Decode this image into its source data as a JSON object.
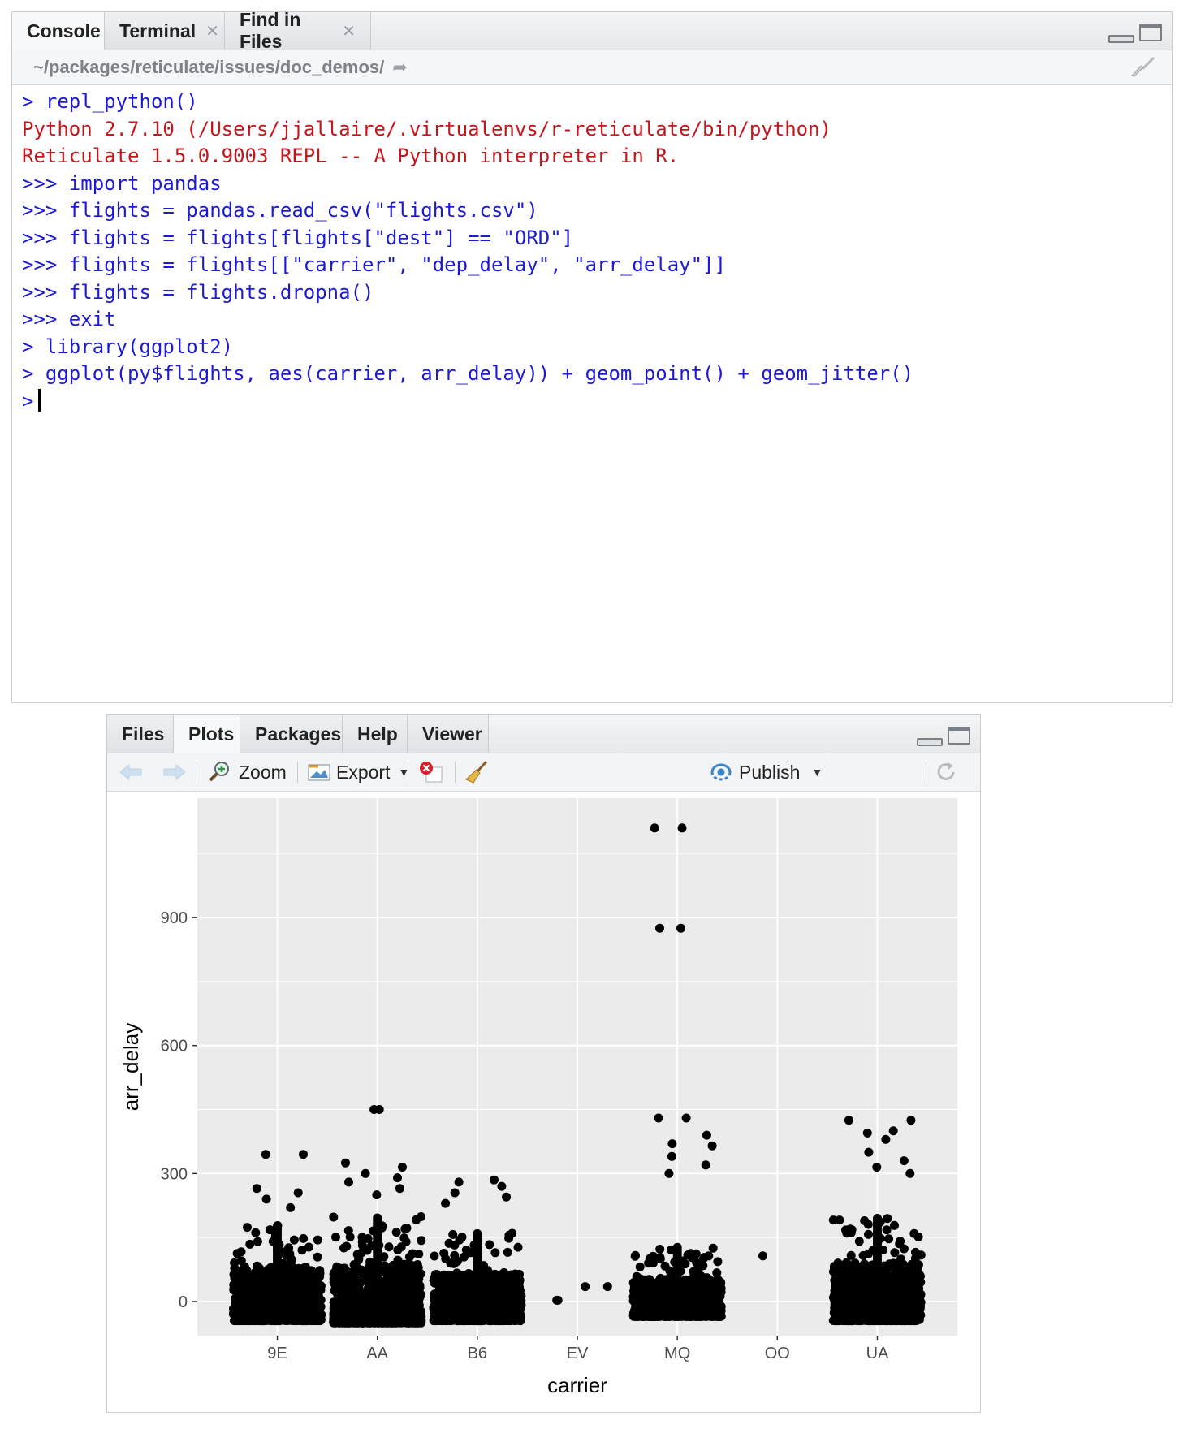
{
  "console": {
    "tabs": [
      {
        "label": "Console",
        "closable": false,
        "active": true
      },
      {
        "label": "Terminal",
        "closable": true,
        "active": false
      },
      {
        "label": "Find in Files",
        "closable": true,
        "active": false
      }
    ],
    "path": "~/packages/reticulate/issues/doc_demos/",
    "lines": [
      {
        "text": "> repl_python()",
        "color": "blue"
      },
      {
        "text": "Python 2.7.10 (/Users/jjallaire/.virtualenvs/r-reticulate/bin/python)",
        "color": "red"
      },
      {
        "text": "Reticulate 1.5.0.9003 REPL -- A Python interpreter in R.",
        "color": "red"
      },
      {
        "text": ">>> import pandas",
        "color": "blue"
      },
      {
        "text": ">>> flights = pandas.read_csv(\"flights.csv\")",
        "color": "blue"
      },
      {
        "text": ">>> flights = flights[flights[\"dest\"] == \"ORD\"]",
        "color": "blue"
      },
      {
        "text": ">>> flights = flights[[\"carrier\", \"dep_delay\", \"arr_delay\"]]",
        "color": "blue"
      },
      {
        "text": ">>> flights = flights.dropna()",
        "color": "blue"
      },
      {
        "text": ">>> exit",
        "color": "blue"
      },
      {
        "text": "> library(ggplot2)",
        "color": "blue"
      },
      {
        "text": "> ggplot(py$flights, aes(carrier, arr_delay)) + geom_point() + geom_jitter()",
        "color": "blue"
      }
    ],
    "prompt": ">"
  },
  "plots": {
    "tabs": [
      {
        "label": "Files",
        "active": false
      },
      {
        "label": "Plots",
        "active": true
      },
      {
        "label": "Packages",
        "active": false
      },
      {
        "label": "Help",
        "active": false
      },
      {
        "label": "Viewer",
        "active": false
      }
    ],
    "toolbar": {
      "zoom_label": "Zoom",
      "export_label": "Export",
      "publish_label": "Publish"
    }
  },
  "colors": {
    "console_blue": "#1d1ad6",
    "console_red": "#c4161c",
    "panel_bg": "#ebebeb",
    "grid": "#ffffff",
    "point": "#000000"
  },
  "chart_data": {
    "type": "scatter",
    "title": "",
    "xlabel": "carrier",
    "ylabel": "arr_delay",
    "categories": [
      "9E",
      "AA",
      "B6",
      "EV",
      "MQ",
      "OO",
      "UA"
    ],
    "yticks": [
      0,
      300,
      600,
      900
    ],
    "ylim": [
      -80,
      1180
    ],
    "grid": true,
    "jitter": true,
    "summary": [
      {
        "carrier": "9E",
        "dense_min": -45,
        "dense_max": 180,
        "max": 345
      },
      {
        "carrier": "AA",
        "dense_min": -50,
        "dense_max": 200,
        "max": 450
      },
      {
        "carrier": "B6",
        "dense_min": -45,
        "dense_max": 160,
        "max": 285
      },
      {
        "carrier": "EV",
        "dense_min": null,
        "dense_max": null,
        "max": 35
      },
      {
        "carrier": "MQ",
        "dense_min": -35,
        "dense_max": 130,
        "max": 1110
      },
      {
        "carrier": "OO",
        "dense_min": null,
        "dense_max": null,
        "max": 107
      },
      {
        "carrier": "UA",
        "dense_min": -45,
        "dense_max": 200,
        "max": 425
      }
    ],
    "outliers": [
      {
        "carrier": "9E",
        "y": 345
      },
      {
        "carrier": "9E",
        "y": 345
      },
      {
        "carrier": "9E",
        "y": 265
      },
      {
        "carrier": "9E",
        "y": 255
      },
      {
        "carrier": "9E",
        "y": 240
      },
      {
        "carrier": "9E",
        "y": 220
      },
      {
        "carrier": "AA",
        "y": 450
      },
      {
        "carrier": "AA",
        "y": 450
      },
      {
        "carrier": "AA",
        "y": 325
      },
      {
        "carrier": "AA",
        "y": 315
      },
      {
        "carrier": "AA",
        "y": 300
      },
      {
        "carrier": "AA",
        "y": 290
      },
      {
        "carrier": "AA",
        "y": 280
      },
      {
        "carrier": "AA",
        "y": 265
      },
      {
        "carrier": "AA",
        "y": 250
      },
      {
        "carrier": "B6",
        "y": 285
      },
      {
        "carrier": "B6",
        "y": 280
      },
      {
        "carrier": "B6",
        "y": 270
      },
      {
        "carrier": "B6",
        "y": 255
      },
      {
        "carrier": "B6",
        "y": 245
      },
      {
        "carrier": "B6",
        "y": 230
      },
      {
        "carrier": "EV",
        "y": 35
      },
      {
        "carrier": "EV",
        "y": 3
      },
      {
        "carrier": "EV",
        "y": 35
      },
      {
        "carrier": "EV",
        "y": 3
      },
      {
        "carrier": "MQ",
        "y": 1110
      },
      {
        "carrier": "MQ",
        "y": 1110
      },
      {
        "carrier": "MQ",
        "y": 875
      },
      {
        "carrier": "MQ",
        "y": 875
      },
      {
        "carrier": "MQ",
        "y": 430
      },
      {
        "carrier": "MQ",
        "y": 430
      },
      {
        "carrier": "MQ",
        "y": 390
      },
      {
        "carrier": "MQ",
        "y": 370
      },
      {
        "carrier": "MQ",
        "y": 365
      },
      {
        "carrier": "MQ",
        "y": 340
      },
      {
        "carrier": "MQ",
        "y": 320
      },
      {
        "carrier": "MQ",
        "y": 300
      },
      {
        "carrier": "MQ",
        "y": 107
      },
      {
        "carrier": "OO",
        "y": 107
      },
      {
        "carrier": "UA",
        "y": 425
      },
      {
        "carrier": "UA",
        "y": 425
      },
      {
        "carrier": "UA",
        "y": 400
      },
      {
        "carrier": "UA",
        "y": 395
      },
      {
        "carrier": "UA",
        "y": 380
      },
      {
        "carrier": "UA",
        "y": 350
      },
      {
        "carrier": "UA",
        "y": 330
      },
      {
        "carrier": "UA",
        "y": 315
      },
      {
        "carrier": "UA",
        "y": 300
      }
    ]
  }
}
